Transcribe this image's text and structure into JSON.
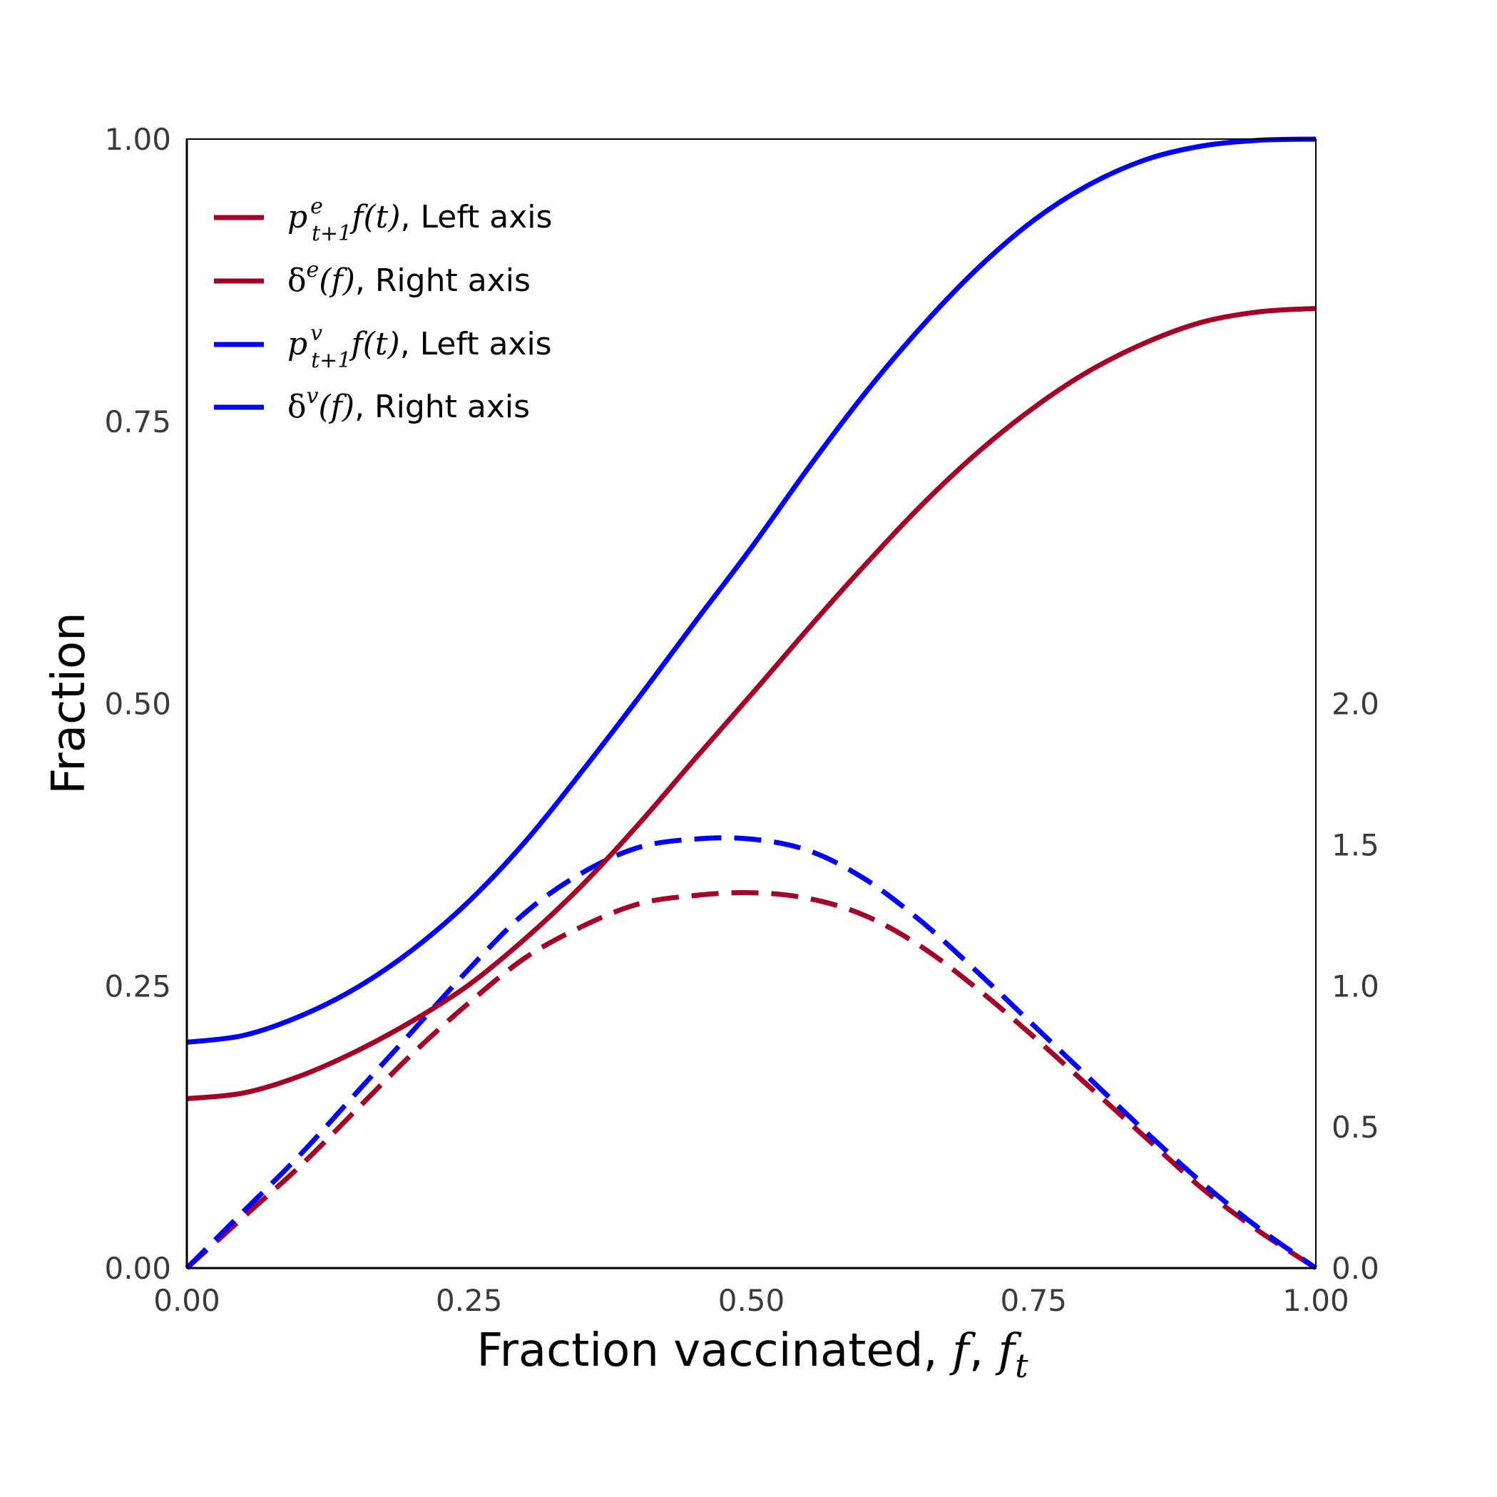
{
  "chart_data": {
    "type": "line",
    "xlabel": "Fraction vaccinated, f, f",
    "xlabel_parts": {
      "main": "Fraction vaccinated, ",
      "f": "f",
      "comma": ", ",
      "ft": "f",
      "ft_sub": "t"
    },
    "ylabel": "Fraction",
    "xlim": [
      0,
      1
    ],
    "ylim": [
      0,
      1
    ],
    "ylim_right": [
      0,
      4
    ],
    "xticks": [
      "0.00",
      "0.25",
      "0.50",
      "0.75",
      "1.00"
    ],
    "yticks": [
      "0.00",
      "0.25",
      "0.50",
      "0.75",
      "1.00"
    ],
    "yticks_right": [
      "0.0",
      "0.5",
      "1.0",
      "1.5",
      "2.0"
    ],
    "grid": false,
    "legend_position": "top-left",
    "x": [
      0,
      0.05,
      0.1,
      0.15,
      0.2,
      0.25,
      0.3,
      0.35,
      0.4,
      0.45,
      0.5,
      0.55,
      0.6,
      0.65,
      0.7,
      0.75,
      0.8,
      0.85,
      0.9,
      0.95,
      1.0
    ],
    "series": [
      {
        "id": "pe",
        "legend": {
          "sym": "p",
          "sup": "e",
          "sub": "t+1",
          "fn": "f(t)",
          "suffix": ", Left axis"
        },
        "axis": "left",
        "style": "solid",
        "color": "#a50026",
        "values": [
          0.15,
          0.155,
          0.17,
          0.192,
          0.219,
          0.251,
          0.292,
          0.339,
          0.393,
          0.451,
          0.508,
          0.566,
          0.622,
          0.675,
          0.722,
          0.762,
          0.795,
          0.82,
          0.838,
          0.847,
          0.85
        ]
      },
      {
        "id": "de",
        "legend": {
          "sym": "δ",
          "sup": "e",
          "fn": "(f)",
          "suffix": ", Right axis"
        },
        "axis": "right",
        "style": "dashed",
        "color": "#a50026",
        "values": [
          0,
          0.18,
          0.36,
          0.56,
          0.76,
          0.94,
          1.1,
          1.21,
          1.29,
          1.32,
          1.33,
          1.31,
          1.25,
          1.14,
          0.99,
          0.82,
          0.64,
          0.46,
          0.28,
          0.13,
          0
        ]
      },
      {
        "id": "pv",
        "legend": {
          "sym": "p",
          "sup": "v",
          "sub": "t+1",
          "fn": "f(t)",
          "suffix": ", Left axis"
        },
        "axis": "left",
        "style": "solid",
        "color": "#0000ff",
        "values": [
          0.2,
          0.206,
          0.223,
          0.248,
          0.282,
          0.325,
          0.378,
          0.44,
          0.505,
          0.572,
          0.638,
          0.708,
          0.774,
          0.833,
          0.885,
          0.928,
          0.96,
          0.982,
          0.994,
          0.999,
          1.0
        ]
      },
      {
        "id": "dv",
        "legend": {
          "sym": "δ",
          "sup": "v",
          "fn": "(f)",
          "suffix": ", Right axis"
        },
        "axis": "right",
        "style": "dashed",
        "color": "#0000ff",
        "values": [
          0,
          0.2,
          0.4,
          0.62,
          0.84,
          1.06,
          1.26,
          1.4,
          1.49,
          1.52,
          1.52,
          1.48,
          1.38,
          1.23,
          1.05,
          0.86,
          0.67,
          0.48,
          0.3,
          0.14,
          0
        ]
      }
    ]
  }
}
